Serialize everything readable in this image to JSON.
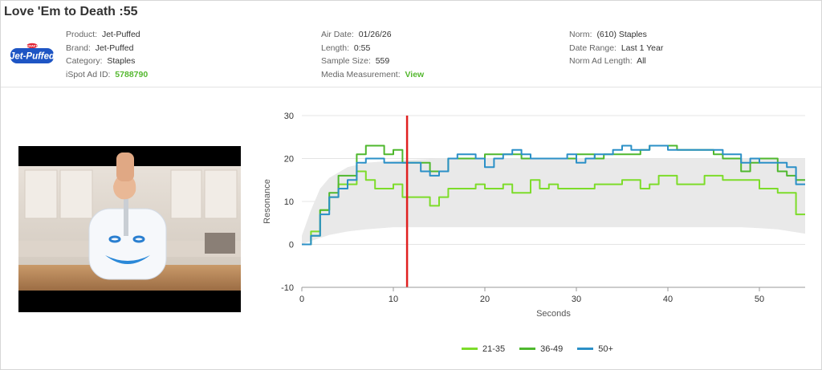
{
  "ad": {
    "title": "Love 'Em to Death :55",
    "logo": {
      "icon": "jet-puffed-logo",
      "text": "Jet-Puffed",
      "badge_text": "KRAFT"
    },
    "col1": [
      {
        "label": "Product:",
        "value": "Jet-Puffed"
      },
      {
        "label": "Brand:",
        "value": "Jet-Puffed"
      },
      {
        "label": "Category:",
        "value": "Staples"
      },
      {
        "label": "iSpot Ad ID:",
        "value": "5788790"
      }
    ],
    "col2": [
      {
        "label": "Air Date:",
        "value": "01/26/26"
      },
      {
        "label": "Length:",
        "value": "0:55"
      },
      {
        "label": "Sample Size:",
        "value": "559"
      },
      {
        "label": "Media Measurement:",
        "value": "View"
      }
    ],
    "col3": [
      {
        "label": "Norm:",
        "value": "(610) Staples"
      },
      {
        "label": "Date Range:",
        "value": "Last 1 Year"
      },
      {
        "label": "Norm Ad Length:",
        "value": "All"
      }
    ]
  },
  "video": {
    "icon": "marshmallow-ad-thumbnail"
  },
  "chart_data": {
    "type": "line",
    "xlabel": "Seconds",
    "ylabel": "Resonance",
    "xlim": [
      0,
      55
    ],
    "ylim": [
      -10,
      30
    ],
    "xticks": [
      "0",
      "10",
      "20",
      "30",
      "40",
      "50"
    ],
    "yticks": [
      "-10",
      "0",
      "10",
      "20",
      "30"
    ],
    "grid": "horizontal",
    "legend": "bottom-center",
    "marker_x": 11.5,
    "marker_color": "#e02020",
    "norm_band": {
      "x": [
        0,
        1,
        2,
        3,
        5,
        7,
        10,
        15,
        20,
        30,
        40,
        48,
        50,
        52,
        55
      ],
      "upper": [
        2,
        8,
        13,
        15.5,
        18,
        19,
        19.5,
        20,
        20,
        20,
        20,
        20,
        20,
        20,
        20
      ],
      "lower": [
        0,
        0.8,
        1.5,
        2.2,
        3,
        3.5,
        4,
        4,
        4,
        4,
        4,
        4,
        3.8,
        3.5,
        2.5
      ],
      "color": "#e9e9e9"
    },
    "series": [
      {
        "name": "21-35",
        "color": "#7ddc2a",
        "x": [
          0,
          1,
          2,
          3,
          4,
          5,
          6,
          7,
          8,
          9,
          10,
          11,
          12,
          13,
          14,
          15,
          16,
          17,
          18,
          19,
          20,
          21,
          22,
          23,
          24,
          25,
          26,
          27,
          28,
          29,
          30,
          31,
          32,
          33,
          34,
          35,
          36,
          37,
          38,
          39,
          40,
          41,
          42,
          43,
          44,
          45,
          46,
          47,
          48,
          49,
          50,
          51,
          52,
          53,
          54,
          55
        ],
        "y": [
          0,
          3,
          8,
          11,
          14,
          14,
          17,
          15,
          13,
          13,
          14,
          11,
          11,
          11,
          9,
          11,
          13,
          13,
          13,
          14,
          13,
          13,
          14,
          12,
          12,
          15,
          13,
          14,
          13,
          13,
          13,
          13,
          14,
          14,
          14,
          15,
          15,
          13,
          14,
          16,
          16,
          14,
          14,
          14,
          16,
          16,
          15,
          15,
          15,
          15,
          13,
          13,
          12,
          12,
          7,
          7
        ]
      },
      {
        "name": "36-49",
        "color": "#4fb82e",
        "x": [
          0,
          1,
          2,
          3,
          4,
          5,
          6,
          7,
          8,
          9,
          10,
          11,
          12,
          13,
          14,
          15,
          16,
          17,
          18,
          19,
          20,
          21,
          22,
          23,
          24,
          25,
          26,
          27,
          28,
          29,
          30,
          31,
          32,
          33,
          34,
          35,
          36,
          37,
          38,
          39,
          40,
          41,
          42,
          43,
          44,
          45,
          46,
          47,
          48,
          49,
          50,
          51,
          52,
          53,
          54,
          55
        ],
        "y": [
          0,
          2,
          8,
          12,
          16,
          16,
          21,
          23,
          23,
          21,
          22,
          19,
          19,
          19,
          17,
          17,
          20,
          20,
          20,
          20,
          21,
          21,
          21,
          21,
          20,
          20,
          20,
          20,
          20,
          20,
          21,
          21,
          20,
          21,
          21,
          21,
          21,
          22,
          23,
          23,
          23,
          22,
          22,
          22,
          22,
          21,
          20,
          20,
          17,
          19,
          20,
          20,
          17,
          16,
          15,
          15
        ]
      },
      {
        "name": "50+",
        "color": "#2b90c7",
        "x": [
          0,
          1,
          2,
          3,
          4,
          5,
          6,
          7,
          8,
          9,
          10,
          11,
          12,
          13,
          14,
          15,
          16,
          17,
          18,
          19,
          20,
          21,
          22,
          23,
          24,
          25,
          26,
          27,
          28,
          29,
          30,
          31,
          32,
          33,
          34,
          35,
          36,
          37,
          38,
          39,
          40,
          41,
          42,
          43,
          44,
          45,
          46,
          47,
          48,
          49,
          50,
          51,
          52,
          53,
          54,
          55
        ],
        "y": [
          0,
          2,
          7,
          11,
          13,
          15,
          19,
          20,
          20,
          19,
          19,
          19,
          19,
          17,
          16,
          17,
          20,
          21,
          21,
          20,
          18,
          20,
          21,
          22,
          21,
          20,
          20,
          20,
          20,
          21,
          19,
          20,
          21,
          21,
          22,
          23,
          22,
          22,
          23,
          23,
          22,
          22,
          22,
          22,
          22,
          22,
          21,
          21,
          19,
          20,
          19,
          19,
          19,
          18,
          14,
          14
        ]
      }
    ]
  }
}
